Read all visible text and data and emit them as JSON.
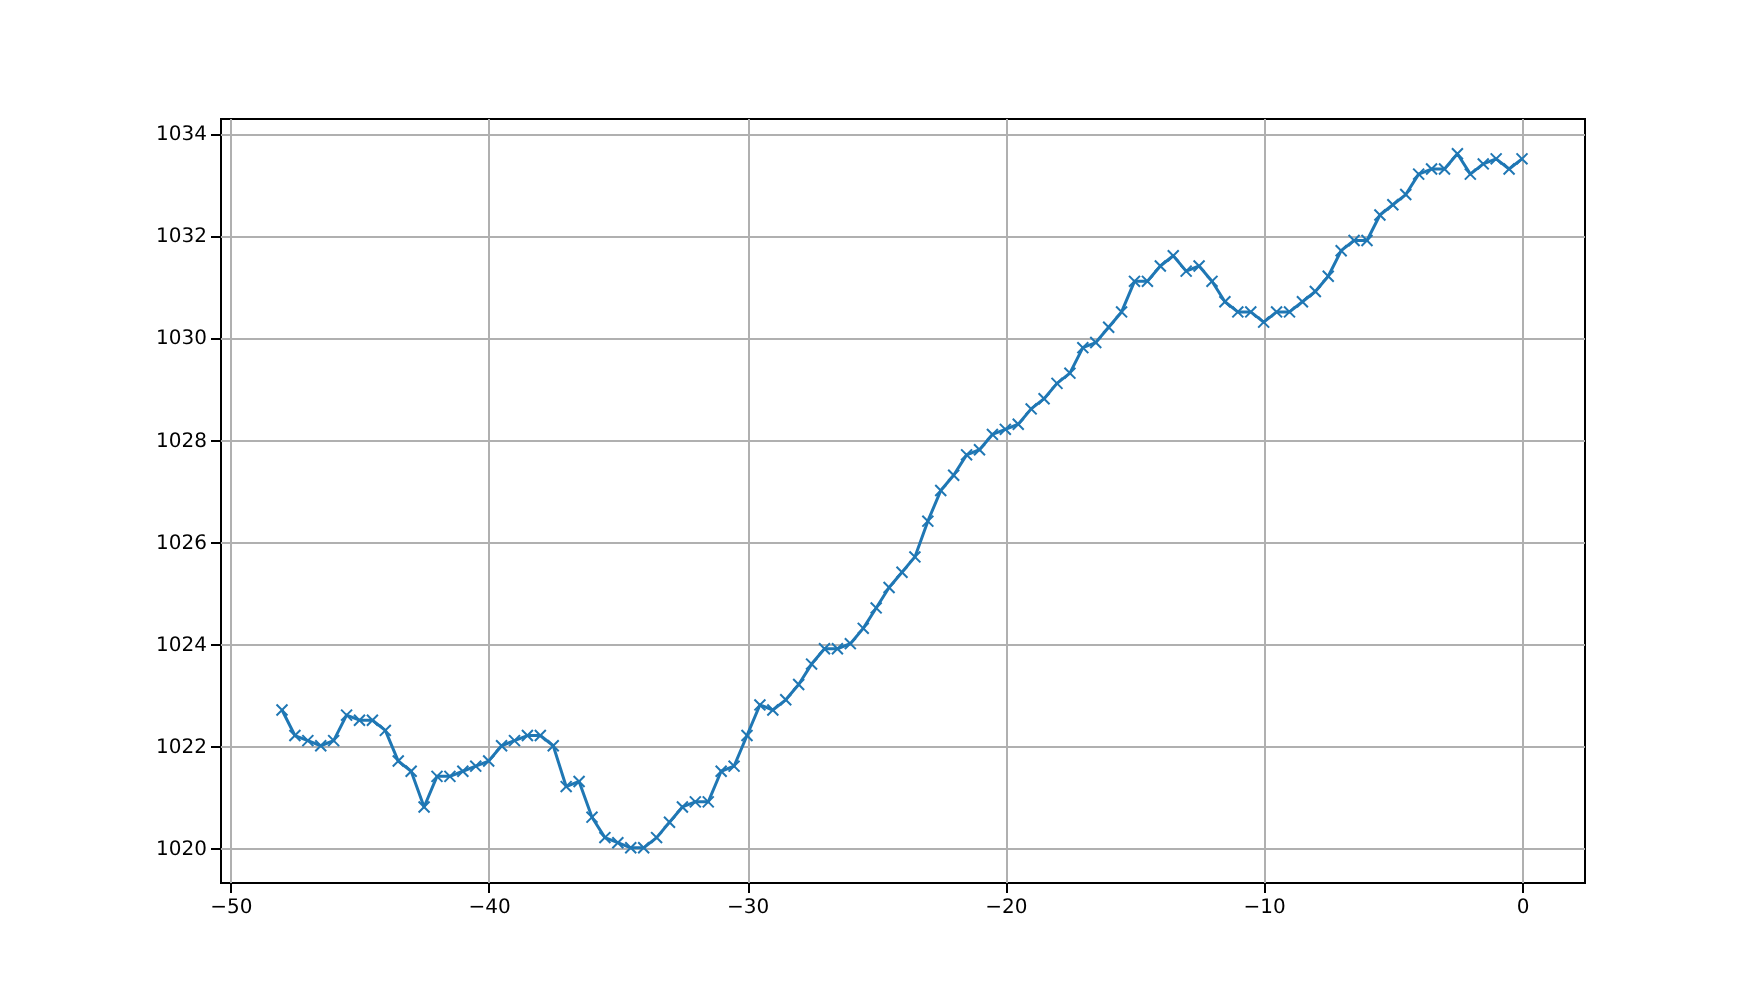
{
  "chart_data": {
    "type": "line",
    "x": [
      -48,
      -47.5,
      -47,
      -46.5,
      -46,
      -45.5,
      -45,
      -44.5,
      -44,
      -43.5,
      -43,
      -42.5,
      -42,
      -41.5,
      -41,
      -40.5,
      -40,
      -39.5,
      -39,
      -38.5,
      -38,
      -37.5,
      -37,
      -36.5,
      -36,
      -35.5,
      -35,
      -34.5,
      -34,
      -33.5,
      -33,
      -32.5,
      -32,
      -31.5,
      -31,
      -30.5,
      -30,
      -29.5,
      -29,
      -28.5,
      -28,
      -27.5,
      -27,
      -26.5,
      -26,
      -25.5,
      -25,
      -24.5,
      -24,
      -23.5,
      -23,
      -22.5,
      -22,
      -21.5,
      -21,
      -20.5,
      -20,
      -19.5,
      -19,
      -18.5,
      -18,
      -17.5,
      -17,
      -16.5,
      -16,
      -15.5,
      -15,
      -14.5,
      -14,
      -13.5,
      -13,
      -12.5,
      -12,
      -11.5,
      -11,
      -10.5,
      -10,
      -9.5,
      -9,
      -8.5,
      -8,
      -7.5,
      -7,
      -6.5,
      -6,
      -5.5,
      -5,
      -4.5,
      -4,
      -3.5,
      -3,
      -2.5,
      -2,
      -1.5,
      -1,
      -0.5,
      0
    ],
    "series": [
      {
        "color": "#1f77b4",
        "values": [
          1022.7,
          1022.2,
          1022.1,
          1022.0,
          1022.1,
          1022.6,
          1022.5,
          1022.5,
          1022.3,
          1021.7,
          1021.5,
          1020.8,
          1021.4,
          1021.4,
          1021.5,
          1021.6,
          1021.7,
          1022.0,
          1022.1,
          1022.2,
          1022.2,
          1022.0,
          1021.2,
          1021.3,
          1020.6,
          1020.2,
          1020.1,
          1020.0,
          1020.0,
          1020.2,
          1020.5,
          1020.8,
          1020.9,
          1020.9,
          1021.5,
          1021.6,
          1022.2,
          1022.8,
          1022.7,
          1022.9,
          1023.2,
          1023.6,
          1023.9,
          1023.9,
          1024.0,
          1024.3,
          1024.7,
          1025.1,
          1025.4,
          1025.7,
          1026.4,
          1027.0,
          1027.3,
          1027.7,
          1027.8,
          1028.1,
          1028.2,
          1028.3,
          1028.6,
          1028.8,
          1029.1,
          1029.3,
          1029.8,
          1029.9,
          1030.2,
          1030.5,
          1031.1,
          1031.1,
          1031.4,
          1031.6,
          1031.3,
          1031.4,
          1031.1,
          1030.7,
          1030.5,
          1030.5,
          1030.3,
          1030.5,
          1030.5,
          1030.7,
          1030.9,
          1031.2,
          1031.7,
          1031.9,
          1031.9,
          1032.4,
          1032.6,
          1032.8,
          1033.2,
          1033.3,
          1033.3,
          1033.6,
          1033.2,
          1033.4,
          1033.5,
          1033.3,
          1033.5
        ]
      }
    ],
    "xlim": [
      -50.4,
      2.4
    ],
    "xticks": [
      -50,
      -40,
      -30,
      -20,
      -10,
      0
    ],
    "ylim": [
      1019.33,
      1034.3
    ],
    "yticks": [
      1020,
      1022,
      1024,
      1026,
      1028,
      1030,
      1032,
      1034
    ],
    "grid": true,
    "marker": "cross",
    "line_style": "solid"
  }
}
